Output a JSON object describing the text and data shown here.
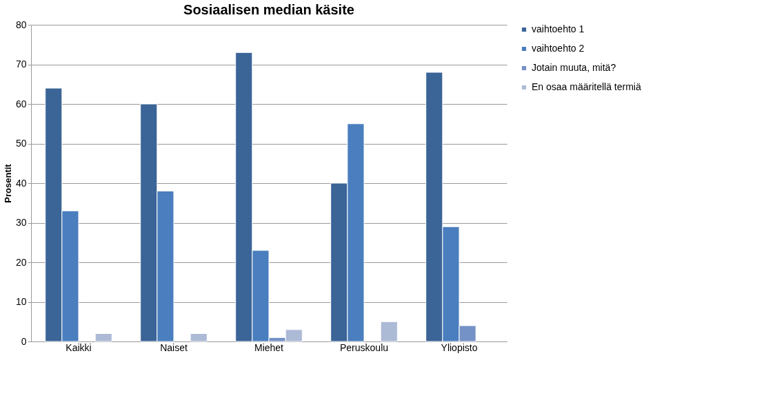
{
  "chart_data": {
    "type": "bar",
    "title": "Sosiaalisen median käsite",
    "ylabel": "Prosentit",
    "categories": [
      "Kaikki",
      "Naiset",
      "Miehet",
      "Peruskoulu",
      "Yliopisto"
    ],
    "series": [
      {
        "name": "vaihtoehto 1",
        "color": "#3b6497",
        "values": [
          64,
          60,
          73,
          40,
          68
        ]
      },
      {
        "name": "vaihtoehto 2",
        "color": "#4a7ebe",
        "values": [
          33,
          38,
          23,
          55,
          29
        ]
      },
      {
        "name": "Jotain muuta, mitä?",
        "color": "#7592c6",
        "values": [
          null,
          null,
          1,
          null,
          4
        ]
      },
      {
        "name": "En osaa määritellä termiä",
        "color": "#adbad6",
        "values": [
          2,
          2,
          3,
          5,
          null
        ]
      }
    ],
    "ylim": [
      0,
      80
    ],
    "yticks": [
      0,
      10,
      20,
      30,
      40,
      50,
      60,
      70,
      80
    ],
    "grid": "y",
    "legend": "right"
  }
}
